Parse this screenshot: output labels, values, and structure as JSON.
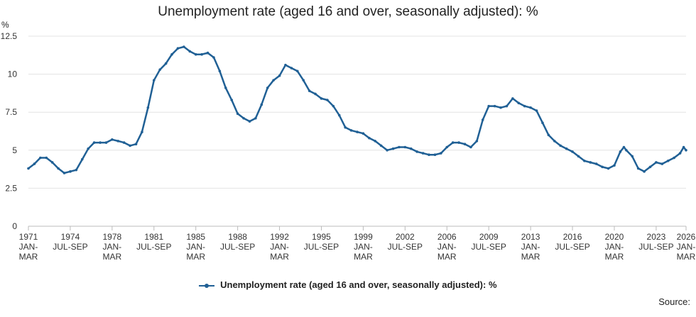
{
  "chart_data": {
    "type": "line",
    "title": "Unemployment rate (aged 16 and over, seasonally adjusted): %",
    "ylabel": "%",
    "xlabel": "",
    "ylim": [
      0,
      12.5
    ],
    "yticks": [
      {
        "value": 0,
        "label": "0"
      },
      {
        "value": 2.5,
        "label": "2.5"
      },
      {
        "value": 5,
        "label": "5"
      },
      {
        "value": 7.5,
        "label": "7.5"
      },
      {
        "value": 10,
        "label": "10"
      },
      {
        "value": 12.5,
        "label": "12.5"
      }
    ],
    "xlim": [
      1971.1,
      2026.1
    ],
    "xticks": [
      {
        "x": 1971.1,
        "year": "1971",
        "quarter": "JAN-MAR"
      },
      {
        "x": 1974.6,
        "year": "1974",
        "quarter": "JUL-SEP"
      },
      {
        "x": 1978.1,
        "year": "1978",
        "quarter": "JAN-MAR"
      },
      {
        "x": 1981.6,
        "year": "1981",
        "quarter": "JUL-SEP"
      },
      {
        "x": 1985.1,
        "year": "1985",
        "quarter": "JAN-MAR"
      },
      {
        "x": 1988.6,
        "year": "1988",
        "quarter": "JUL-SEP"
      },
      {
        "x": 1992.1,
        "year": "1992",
        "quarter": "JAN-MAR"
      },
      {
        "x": 1995.6,
        "year": "1995",
        "quarter": "JUL-SEP"
      },
      {
        "x": 1999.1,
        "year": "1999",
        "quarter": "JAN-MAR"
      },
      {
        "x": 2002.6,
        "year": "2002",
        "quarter": "JUL-SEP"
      },
      {
        "x": 2006.1,
        "year": "2006",
        "quarter": "JAN-MAR"
      },
      {
        "x": 2009.6,
        "year": "2009",
        "quarter": "JUL-SEP"
      },
      {
        "x": 2013.1,
        "year": "2013",
        "quarter": "JAN-MAR"
      },
      {
        "x": 2016.6,
        "year": "2016",
        "quarter": "JUL-SEP"
      },
      {
        "x": 2020.1,
        "year": "2020",
        "quarter": "JAN-MAR"
      },
      {
        "x": 2023.6,
        "year": "2023",
        "quarter": "JUL-SEP"
      },
      {
        "x": 2026.1,
        "year": "2026",
        "quarter": "JAN-MAR"
      }
    ],
    "grid": true,
    "legend_placement": "bottom",
    "series": [
      {
        "name": "Unemployment rate (aged 16 and over, seasonally adjusted): %",
        "color": "#206095",
        "points": [
          [
            1971.1,
            3.8
          ],
          [
            1971.6,
            4.1
          ],
          [
            1972.1,
            4.5
          ],
          [
            1972.6,
            4.5
          ],
          [
            1973.1,
            4.2
          ],
          [
            1973.6,
            3.8
          ],
          [
            1974.1,
            3.5
          ],
          [
            1974.6,
            3.6
          ],
          [
            1975.1,
            3.7
          ],
          [
            1975.6,
            4.4
          ],
          [
            1976.1,
            5.1
          ],
          [
            1976.6,
            5.5
          ],
          [
            1977.1,
            5.5
          ],
          [
            1977.6,
            5.5
          ],
          [
            1978.1,
            5.7
          ],
          [
            1978.6,
            5.6
          ],
          [
            1979.1,
            5.5
          ],
          [
            1979.6,
            5.3
          ],
          [
            1980.1,
            5.4
          ],
          [
            1980.6,
            6.2
          ],
          [
            1981.1,
            7.8
          ],
          [
            1981.6,
            9.6
          ],
          [
            1982.1,
            10.3
          ],
          [
            1982.6,
            10.7
          ],
          [
            1983.1,
            11.3
          ],
          [
            1983.6,
            11.7
          ],
          [
            1984.1,
            11.8
          ],
          [
            1984.6,
            11.5
          ],
          [
            1985.1,
            11.3
          ],
          [
            1985.6,
            11.3
          ],
          [
            1986.1,
            11.4
          ],
          [
            1986.6,
            11.1
          ],
          [
            1987.1,
            10.2
          ],
          [
            1987.6,
            9.1
          ],
          [
            1988.1,
            8.3
          ],
          [
            1988.6,
            7.4
          ],
          [
            1989.1,
            7.1
          ],
          [
            1989.6,
            6.9
          ],
          [
            1990.1,
            7.1
          ],
          [
            1990.6,
            8.0
          ],
          [
            1991.1,
            9.1
          ],
          [
            1991.6,
            9.6
          ],
          [
            1992.1,
            9.9
          ],
          [
            1992.6,
            10.6
          ],
          [
            1993.1,
            10.4
          ],
          [
            1993.6,
            10.2
          ],
          [
            1994.1,
            9.6
          ],
          [
            1994.6,
            8.9
          ],
          [
            1995.1,
            8.7
          ],
          [
            1995.6,
            8.4
          ],
          [
            1996.1,
            8.3
          ],
          [
            1996.6,
            7.9
          ],
          [
            1997.1,
            7.3
          ],
          [
            1997.6,
            6.5
          ],
          [
            1998.1,
            6.3
          ],
          [
            1998.6,
            6.2
          ],
          [
            1999.1,
            6.1
          ],
          [
            1999.6,
            5.8
          ],
          [
            2000.1,
            5.6
          ],
          [
            2000.6,
            5.3
          ],
          [
            2001.1,
            5.0
          ],
          [
            2001.6,
            5.1
          ],
          [
            2002.1,
            5.2
          ],
          [
            2002.6,
            5.2
          ],
          [
            2003.1,
            5.1
          ],
          [
            2003.6,
            4.9
          ],
          [
            2004.1,
            4.8
          ],
          [
            2004.6,
            4.7
          ],
          [
            2005.1,
            4.7
          ],
          [
            2005.6,
            4.8
          ],
          [
            2006.1,
            5.2
          ],
          [
            2006.6,
            5.5
          ],
          [
            2007.1,
            5.5
          ],
          [
            2007.6,
            5.4
          ],
          [
            2008.1,
            5.2
          ],
          [
            2008.6,
            5.6
          ],
          [
            2009.1,
            7.0
          ],
          [
            2009.6,
            7.9
          ],
          [
            2010.1,
            7.9
          ],
          [
            2010.6,
            7.8
          ],
          [
            2011.1,
            7.9
          ],
          [
            2011.6,
            8.4
          ],
          [
            2012.1,
            8.1
          ],
          [
            2012.6,
            7.9
          ],
          [
            2013.1,
            7.8
          ],
          [
            2013.6,
            7.6
          ],
          [
            2014.1,
            6.8
          ],
          [
            2014.6,
            6.0
          ],
          [
            2015.1,
            5.6
          ],
          [
            2015.6,
            5.3
          ],
          [
            2016.1,
            5.1
          ],
          [
            2016.6,
            4.9
          ],
          [
            2017.1,
            4.6
          ],
          [
            2017.6,
            4.3
          ],
          [
            2018.1,
            4.2
          ],
          [
            2018.6,
            4.1
          ],
          [
            2019.1,
            3.9
          ],
          [
            2019.6,
            3.8
          ],
          [
            2020.1,
            4.0
          ],
          [
            2020.6,
            4.9
          ],
          [
            2020.9,
            5.2
          ],
          [
            2021.1,
            5.0
          ],
          [
            2021.6,
            4.6
          ],
          [
            2022.1,
            3.8
          ],
          [
            2022.6,
            3.6
          ],
          [
            2023.1,
            3.9
          ],
          [
            2023.6,
            4.2
          ],
          [
            2024.1,
            4.1
          ],
          [
            2024.6,
            4.3
          ],
          [
            2025.1,
            4.5
          ],
          [
            2025.6,
            4.8
          ],
          [
            2025.9,
            5.2
          ],
          [
            2026.1,
            5.0
          ]
        ]
      }
    ],
    "legend_label": "Unemployment rate (aged 16 and over, seasonally adjusted): %",
    "source_label": "Source:"
  }
}
